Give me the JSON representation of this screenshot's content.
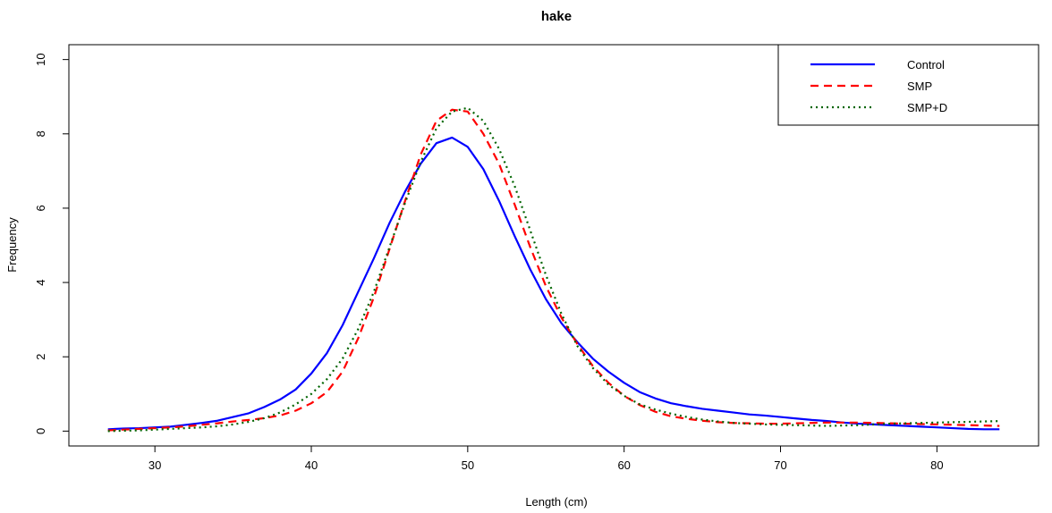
{
  "chart_data": {
    "type": "line",
    "title": "hake",
    "xlabel": "Length (cm)",
    "ylabel": "Frequency",
    "xlim": [
      24.5,
      86.5
    ],
    "ylim": [
      -0.4,
      10.4
    ],
    "xticks": [
      30,
      40,
      50,
      60,
      70,
      80
    ],
    "yticks": [
      0,
      2,
      4,
      6,
      8,
      10
    ],
    "legend_position": "top-right",
    "series": [
      {
        "name": "Control",
        "color": "#0000ff",
        "line_style": "solid",
        "x": [
          27,
          28,
          29,
          30,
          31,
          32,
          33,
          34,
          35,
          36,
          37,
          38,
          39,
          40,
          41,
          42,
          43,
          44,
          45,
          46,
          47,
          48,
          49,
          50,
          51,
          52,
          53,
          54,
          55,
          56,
          57,
          58,
          59,
          60,
          61,
          62,
          63,
          64,
          65,
          66,
          67,
          68,
          69,
          70,
          71,
          72,
          73,
          74,
          75,
          76,
          77,
          78,
          79,
          80,
          81,
          82,
          83,
          84
        ],
        "y": [
          0.05,
          0.07,
          0.08,
          0.1,
          0.12,
          0.17,
          0.22,
          0.28,
          0.38,
          0.48,
          0.65,
          0.85,
          1.12,
          1.55,
          2.1,
          2.85,
          3.75,
          4.65,
          5.6,
          6.45,
          7.2,
          7.75,
          7.9,
          7.65,
          7.05,
          6.2,
          5.25,
          4.35,
          3.55,
          2.9,
          2.4,
          1.95,
          1.6,
          1.3,
          1.05,
          0.88,
          0.75,
          0.67,
          0.6,
          0.55,
          0.5,
          0.45,
          0.42,
          0.38,
          0.34,
          0.3,
          0.27,
          0.23,
          0.2,
          0.18,
          0.16,
          0.14,
          0.12,
          0.1,
          0.08,
          0.06,
          0.05,
          0.05
        ]
      },
      {
        "name": "SMP",
        "color": "#ff0000",
        "line_style": "dashed",
        "x": [
          27,
          28,
          29,
          30,
          31,
          32,
          33,
          34,
          35,
          36,
          37,
          38,
          39,
          40,
          41,
          42,
          43,
          44,
          45,
          46,
          47,
          48,
          49,
          50,
          51,
          52,
          53,
          54,
          55,
          56,
          57,
          58,
          59,
          60,
          61,
          62,
          63,
          64,
          65,
          66,
          67,
          68,
          69,
          70,
          71,
          72,
          73,
          74,
          75,
          76,
          77,
          78,
          79,
          80,
          81,
          82,
          83,
          84
        ],
        "y": [
          0.02,
          0.04,
          0.06,
          0.08,
          0.1,
          0.13,
          0.17,
          0.21,
          0.26,
          0.3,
          0.35,
          0.42,
          0.55,
          0.75,
          1.05,
          1.6,
          2.5,
          3.6,
          4.9,
          6.2,
          7.45,
          8.35,
          8.65,
          8.6,
          8.0,
          7.2,
          6.1,
          4.95,
          3.9,
          3.05,
          2.35,
          1.75,
          1.3,
          0.95,
          0.7,
          0.52,
          0.4,
          0.33,
          0.28,
          0.24,
          0.22,
          0.21,
          0.2,
          0.2,
          0.21,
          0.22,
          0.23,
          0.23,
          0.23,
          0.22,
          0.21,
          0.2,
          0.19,
          0.18,
          0.17,
          0.16,
          0.15,
          0.14
        ]
      },
      {
        "name": "SMP+D",
        "color": "#006400",
        "line_style": "dotted",
        "x": [
          27,
          28,
          29,
          30,
          31,
          32,
          33,
          34,
          35,
          36,
          37,
          38,
          39,
          40,
          41,
          42,
          43,
          44,
          45,
          46,
          47,
          48,
          49,
          50,
          51,
          52,
          53,
          54,
          55,
          56,
          57,
          58,
          59,
          60,
          61,
          62,
          63,
          64,
          65,
          66,
          67,
          68,
          69,
          70,
          71,
          72,
          73,
          74,
          75,
          76,
          77,
          78,
          79,
          80,
          81,
          82,
          83,
          84
        ],
        "y": [
          0.0,
          0.01,
          0.02,
          0.04,
          0.06,
          0.08,
          0.1,
          0.13,
          0.18,
          0.25,
          0.35,
          0.5,
          0.72,
          1.0,
          1.4,
          1.95,
          2.75,
          3.75,
          4.95,
          6.15,
          7.25,
          8.15,
          8.6,
          8.7,
          8.35,
          7.6,
          6.6,
          5.4,
          4.2,
          3.15,
          2.3,
          1.7,
          1.25,
          0.95,
          0.72,
          0.58,
          0.47,
          0.38,
          0.31,
          0.26,
          0.22,
          0.2,
          0.18,
          0.17,
          0.16,
          0.15,
          0.14,
          0.15,
          0.16,
          0.18,
          0.2,
          0.21,
          0.22,
          0.23,
          0.24,
          0.25,
          0.26,
          0.27
        ]
      }
    ]
  }
}
